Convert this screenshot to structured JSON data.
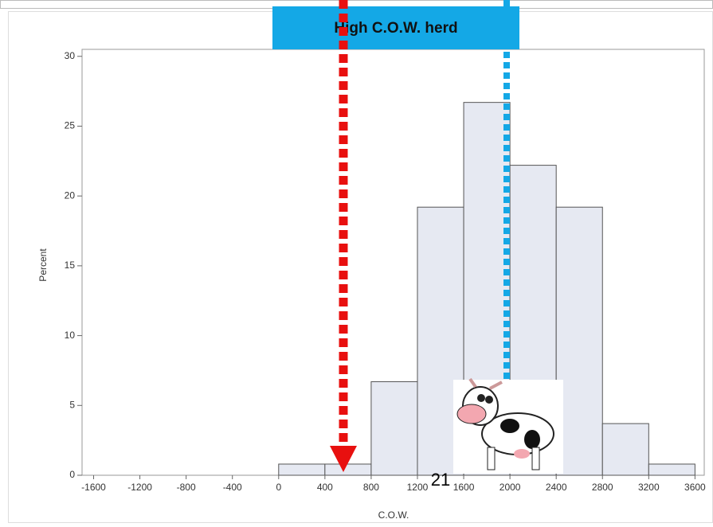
{
  "chart_data": {
    "type": "histogram",
    "annotation": "High C.O.W. herd",
    "page_number": "21",
    "x_label": "C.O.W.",
    "y_label": "Percent",
    "bins": [
      0,
      400,
      800,
      1200,
      1600,
      2000,
      2400,
      2800,
      3200,
      3600
    ],
    "values": [
      0.8,
      0.8,
      6.7,
      19.2,
      26.7,
      22.2,
      19.2,
      3.7,
      0.8
    ],
    "color": "#e6e9f2",
    "xlim": [
      -1700,
      3680
    ],
    "ylim": [
      0,
      30.5
    ],
    "xticks": [
      -1600,
      -1200,
      -800,
      -400,
      0,
      400,
      800,
      1200,
      1600,
      2000,
      2400,
      2800,
      3200,
      3600
    ],
    "yticks": [
      0,
      5,
      10,
      15,
      20,
      25,
      30
    ]
  }
}
